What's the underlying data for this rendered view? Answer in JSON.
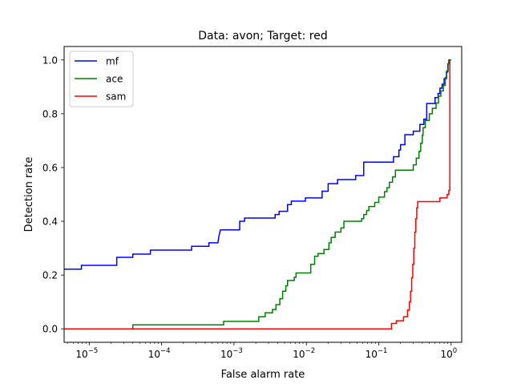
{
  "chart_data": {
    "type": "line",
    "title": "Data: avon; Target: red",
    "xlabel": "False alarm rate",
    "ylabel": "Detection rate",
    "xscale": "log",
    "xlim": [
      4.5e-06,
      1.4
    ],
    "ylim": [
      -0.05,
      1.05
    ],
    "grid": false,
    "legend_position": "top-left",
    "x_ticks": [
      {
        "value": 1e-05,
        "base": "10",
        "exp": "−5"
      },
      {
        "value": 0.0001,
        "base": "10",
        "exp": "−4"
      },
      {
        "value": 0.001,
        "base": "10",
        "exp": "−3"
      },
      {
        "value": 0.01,
        "base": "10",
        "exp": "−2"
      },
      {
        "value": 0.1,
        "base": "10",
        "exp": "−1"
      },
      {
        "value": 1,
        "base": "10",
        "exp": "0"
      }
    ],
    "y_ticks": [
      {
        "value": 0.0,
        "label": "0.0"
      },
      {
        "value": 0.2,
        "label": "0.2"
      },
      {
        "value": 0.4,
        "label": "0.4"
      },
      {
        "value": 0.6,
        "label": "0.6"
      },
      {
        "value": 0.8,
        "label": "0.8"
      },
      {
        "value": 1.0,
        "label": "1.0"
      }
    ],
    "series": [
      {
        "name": "mf",
        "color": "#0000ff",
        "points": [
          [
            4.5e-06,
            0.222
          ],
          [
            7.8e-06,
            0.222
          ],
          [
            7.8e-06,
            0.236
          ],
          [
            2.4e-05,
            0.236
          ],
          [
            2.4e-05,
            0.266
          ],
          [
            4e-05,
            0.266
          ],
          [
            4e-05,
            0.278
          ],
          [
            7e-05,
            0.278
          ],
          [
            7e-05,
            0.293
          ],
          [
            0.00026,
            0.293
          ],
          [
            0.00026,
            0.307
          ],
          [
            0.00045,
            0.307
          ],
          [
            0.00045,
            0.32
          ],
          [
            0.0006,
            0.32
          ],
          [
            0.00062,
            0.345
          ],
          [
            0.00065,
            0.368
          ],
          [
            0.0012,
            0.368
          ],
          [
            0.0012,
            0.4
          ],
          [
            0.0014,
            0.4
          ],
          [
            0.0014,
            0.412
          ],
          [
            0.0037,
            0.412
          ],
          [
            0.0037,
            0.425
          ],
          [
            0.0042,
            0.425
          ],
          [
            0.0042,
            0.437
          ],
          [
            0.0055,
            0.437
          ],
          [
            0.0055,
            0.462
          ],
          [
            0.0062,
            0.462
          ],
          [
            0.0062,
            0.475
          ],
          [
            0.0097,
            0.475
          ],
          [
            0.0097,
            0.487
          ],
          [
            0.0165,
            0.487
          ],
          [
            0.0165,
            0.512
          ],
          [
            0.02,
            0.512
          ],
          [
            0.02,
            0.54
          ],
          [
            0.027,
            0.54
          ],
          [
            0.027,
            0.555
          ],
          [
            0.048,
            0.555
          ],
          [
            0.048,
            0.57
          ],
          [
            0.062,
            0.57
          ],
          [
            0.062,
            0.62
          ],
          [
            0.16,
            0.62
          ],
          [
            0.16,
            0.64
          ],
          [
            0.19,
            0.64
          ],
          [
            0.19,
            0.665
          ],
          [
            0.2,
            0.665
          ],
          [
            0.2,
            0.685
          ],
          [
            0.23,
            0.685
          ],
          [
            0.23,
            0.722
          ],
          [
            0.3,
            0.722
          ],
          [
            0.3,
            0.735
          ],
          [
            0.37,
            0.735
          ],
          [
            0.37,
            0.76
          ],
          [
            0.42,
            0.76
          ],
          [
            0.42,
            0.78
          ],
          [
            0.46,
            0.78
          ],
          [
            0.46,
            0.838
          ],
          [
            0.6,
            0.838
          ],
          [
            0.6,
            0.86
          ],
          [
            0.66,
            0.86
          ],
          [
            0.66,
            0.875
          ],
          [
            0.7,
            0.875
          ],
          [
            0.7,
            0.895
          ],
          [
            0.75,
            0.895
          ],
          [
            0.75,
            0.91
          ],
          [
            0.8,
            0.91
          ],
          [
            0.8,
            0.93
          ],
          [
            0.86,
            0.93
          ],
          [
            0.86,
            0.955
          ],
          [
            0.9,
            0.955
          ],
          [
            0.9,
            0.985
          ],
          [
            0.93,
            0.985
          ],
          [
            0.93,
            1.0
          ],
          [
            1.0,
            1.0
          ]
        ]
      },
      {
        "name": "ace",
        "color": "#008000",
        "points": [
          [
            4e-05,
            0.0
          ],
          [
            4e-05,
            0.015
          ],
          [
            0.00072,
            0.015
          ],
          [
            0.00072,
            0.028
          ],
          [
            0.0022,
            0.028
          ],
          [
            0.0022,
            0.045
          ],
          [
            0.0027,
            0.045
          ],
          [
            0.0027,
            0.06
          ],
          [
            0.0034,
            0.06
          ],
          [
            0.0034,
            0.072
          ],
          [
            0.0038,
            0.072
          ],
          [
            0.0038,
            0.09
          ],
          [
            0.0043,
            0.09
          ],
          [
            0.0043,
            0.112
          ],
          [
            0.0047,
            0.112
          ],
          [
            0.0047,
            0.14
          ],
          [
            0.0052,
            0.14
          ],
          [
            0.0052,
            0.16
          ],
          [
            0.0055,
            0.16
          ],
          [
            0.0055,
            0.18
          ],
          [
            0.0068,
            0.18
          ],
          [
            0.0068,
            0.192
          ],
          [
            0.0072,
            0.192
          ],
          [
            0.0072,
            0.208
          ],
          [
            0.0115,
            0.208
          ],
          [
            0.0115,
            0.24
          ],
          [
            0.013,
            0.24
          ],
          [
            0.013,
            0.27
          ],
          [
            0.0145,
            0.27
          ],
          [
            0.0145,
            0.28
          ],
          [
            0.0175,
            0.28
          ],
          [
            0.0175,
            0.295
          ],
          [
            0.0205,
            0.295
          ],
          [
            0.0205,
            0.32
          ],
          [
            0.022,
            0.32
          ],
          [
            0.022,
            0.34
          ],
          [
            0.025,
            0.34
          ],
          [
            0.025,
            0.36
          ],
          [
            0.03,
            0.36
          ],
          [
            0.03,
            0.375
          ],
          [
            0.033,
            0.375
          ],
          [
            0.033,
            0.4
          ],
          [
            0.058,
            0.4
          ],
          [
            0.058,
            0.41
          ],
          [
            0.062,
            0.41
          ],
          [
            0.062,
            0.425
          ],
          [
            0.068,
            0.425
          ],
          [
            0.068,
            0.44
          ],
          [
            0.073,
            0.44
          ],
          [
            0.073,
            0.455
          ],
          [
            0.088,
            0.455
          ],
          [
            0.088,
            0.47
          ],
          [
            0.1,
            0.47
          ],
          [
            0.1,
            0.49
          ],
          [
            0.12,
            0.49
          ],
          [
            0.12,
            0.51
          ],
          [
            0.13,
            0.51
          ],
          [
            0.13,
            0.525
          ],
          [
            0.14,
            0.525
          ],
          [
            0.14,
            0.545
          ],
          [
            0.155,
            0.545
          ],
          [
            0.155,
            0.565
          ],
          [
            0.17,
            0.565
          ],
          [
            0.17,
            0.59
          ],
          [
            0.3,
            0.59
          ],
          [
            0.3,
            0.61
          ],
          [
            0.33,
            0.61
          ],
          [
            0.33,
            0.635
          ],
          [
            0.36,
            0.635
          ],
          [
            0.36,
            0.66
          ],
          [
            0.38,
            0.66
          ],
          [
            0.38,
            0.69
          ],
          [
            0.4,
            0.69
          ],
          [
            0.4,
            0.72
          ],
          [
            0.41,
            0.72
          ],
          [
            0.41,
            0.748
          ],
          [
            0.44,
            0.748
          ],
          [
            0.44,
            0.775
          ],
          [
            0.5,
            0.775
          ],
          [
            0.5,
            0.8
          ],
          [
            0.55,
            0.8
          ],
          [
            0.55,
            0.82
          ],
          [
            0.62,
            0.82
          ],
          [
            0.62,
            0.84
          ],
          [
            0.67,
            0.84
          ],
          [
            0.67,
            0.865
          ],
          [
            0.72,
            0.865
          ],
          [
            0.72,
            0.885
          ],
          [
            0.78,
            0.885
          ],
          [
            0.78,
            0.905
          ],
          [
            0.83,
            0.905
          ],
          [
            0.83,
            0.935
          ],
          [
            0.87,
            0.935
          ],
          [
            0.87,
            0.96
          ],
          [
            0.91,
            0.96
          ],
          [
            0.91,
            0.985
          ],
          [
            0.95,
            0.985
          ],
          [
            0.95,
            1.0
          ],
          [
            1.0,
            1.0
          ]
        ]
      },
      {
        "name": "sam",
        "color": "#ff0000",
        "points": [
          [
            4.5e-06,
            0.0
          ],
          [
            0.15,
            0.0
          ],
          [
            0.15,
            0.02
          ],
          [
            0.175,
            0.02
          ],
          [
            0.175,
            0.03
          ],
          [
            0.22,
            0.03
          ],
          [
            0.22,
            0.045
          ],
          [
            0.25,
            0.045
          ],
          [
            0.25,
            0.07
          ],
          [
            0.265,
            0.07
          ],
          [
            0.265,
            0.1
          ],
          [
            0.275,
            0.1
          ],
          [
            0.275,
            0.14
          ],
          [
            0.285,
            0.14
          ],
          [
            0.285,
            0.19
          ],
          [
            0.295,
            0.19
          ],
          [
            0.295,
            0.24
          ],
          [
            0.305,
            0.24
          ],
          [
            0.305,
            0.3
          ],
          [
            0.315,
            0.3
          ],
          [
            0.315,
            0.36
          ],
          [
            0.325,
            0.36
          ],
          [
            0.325,
            0.41
          ],
          [
            0.335,
            0.41
          ],
          [
            0.335,
            0.45
          ],
          [
            0.345,
            0.45
          ],
          [
            0.345,
            0.473
          ],
          [
            0.7,
            0.473
          ],
          [
            0.7,
            0.487
          ],
          [
            0.88,
            0.487
          ],
          [
            0.88,
            0.5
          ],
          [
            0.93,
            0.5
          ],
          [
            0.93,
            0.515
          ],
          [
            0.96,
            0.515
          ],
          [
            0.96,
            1.0
          ]
        ]
      }
    ]
  }
}
